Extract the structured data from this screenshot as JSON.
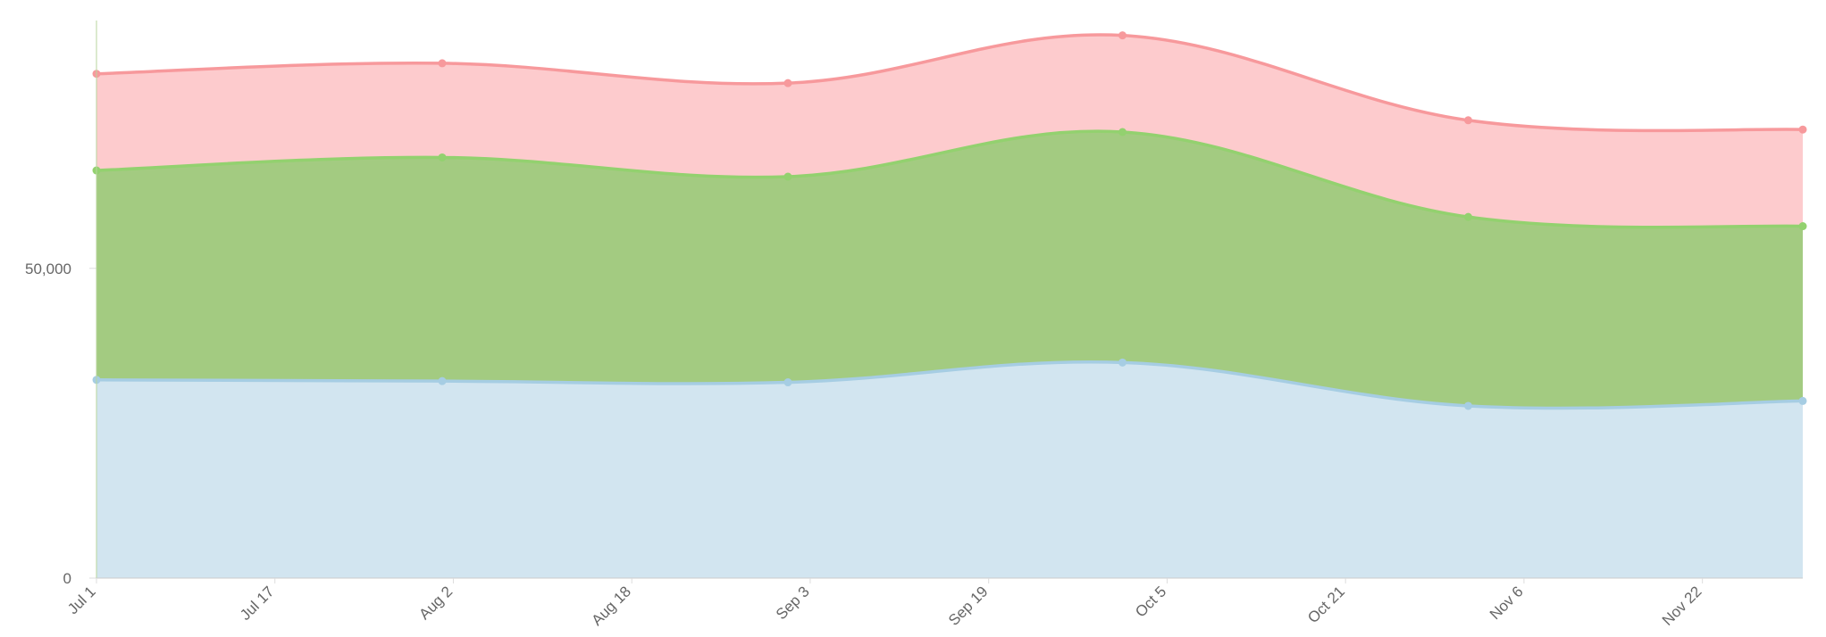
{
  "chart_data": {
    "type": "stacked-area",
    "x": [
      0,
      31,
      62,
      92,
      123,
      153
    ],
    "xlim": [
      0,
      153
    ],
    "xticks": [
      {
        "value": 0,
        "label": "Jul 1"
      },
      {
        "value": 16,
        "label": "Jul 17"
      },
      {
        "value": 32,
        "label": "Aug 2"
      },
      {
        "value": 48,
        "label": "Aug 18"
      },
      {
        "value": 64,
        "label": "Sep 3"
      },
      {
        "value": 80,
        "label": "Sep 19"
      },
      {
        "value": 96,
        "label": "Oct 5"
      },
      {
        "value": 112,
        "label": "Oct 21"
      },
      {
        "value": 128,
        "label": "Nov 6"
      },
      {
        "value": 144,
        "label": "Nov 22"
      }
    ],
    "ylim": [
      0,
      90000
    ],
    "yticks": [
      0,
      {
        "value": 50000,
        "label": "50,000"
      }
    ],
    "series": [
      {
        "color": "#a6cde3",
        "fill": "#d2e5f0",
        "values": [
          32000,
          31800,
          31600,
          34800,
          27800,
          28600
        ]
      },
      {
        "color": "#93d16f",
        "fill": "#a3cb81",
        "values": [
          33800,
          36100,
          33200,
          37200,
          30500,
          28200
        ]
      },
      {
        "color": "#f7999c",
        "fill": "#fdcbcd",
        "values": [
          15600,
          15200,
          15100,
          15600,
          15600,
          15600
        ]
      }
    ]
  }
}
